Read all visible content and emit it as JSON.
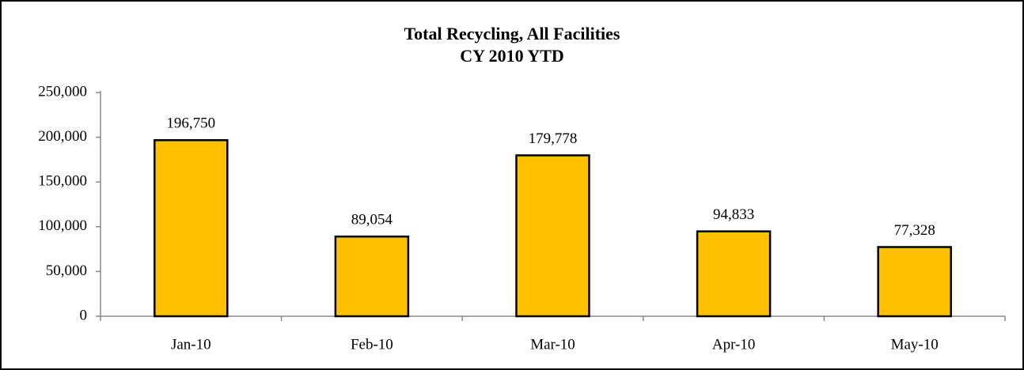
{
  "chart_data": {
    "type": "bar",
    "title": "Total Recycling, All Facilities",
    "subtitle": "CY 2010 YTD",
    "categories": [
      "Jan-10",
      "Feb-10",
      "Mar-10",
      "Apr-10",
      "May-10"
    ],
    "values": [
      196750,
      89054,
      179778,
      94833,
      77328
    ],
    "value_labels": [
      "196,750",
      "89,054",
      "179,778",
      "94,833",
      "77,328"
    ],
    "color": "#ffc000",
    "ylim": [
      0,
      250000
    ],
    "yticks": [
      0,
      {
        "value": 50000,
        "label": "50,000"
      },
      {
        "value": 100000,
        "label": "100,000"
      },
      {
        "value": 150000,
        "label": "150,000"
      },
      {
        "value": 200000,
        "label": "200,000"
      },
      {
        "value": 250000,
        "label": "250,000"
      }
    ],
    "grid": false
  }
}
